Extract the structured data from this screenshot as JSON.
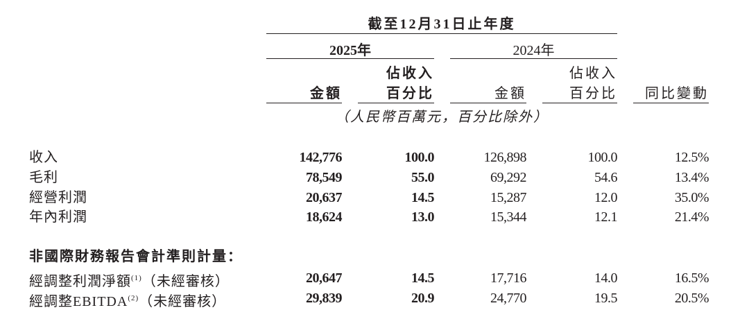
{
  "header": {
    "period": "截至12月31日止年度",
    "year_current": "2025年",
    "year_prior": "2024年",
    "col_amount": "金額",
    "col_pct_line1": "佔收入",
    "col_pct_line2": "百分比",
    "col_change": "同比變動",
    "unit_note": "（人民幣百萬元，百分比除外）"
  },
  "rows": [
    {
      "label": "收入",
      "amount_2025": "142,776",
      "pct_2025": "100.0",
      "amount_2024": "126,898",
      "pct_2024": "100.0",
      "yoy": "12.5%"
    },
    {
      "label": "毛利",
      "amount_2025": "78,549",
      "pct_2025": "55.0",
      "amount_2024": "69,292",
      "pct_2024": "54.6",
      "yoy": "13.4%"
    },
    {
      "label": "經營利潤",
      "amount_2025": "20,637",
      "pct_2025": "14.5",
      "amount_2024": "15,287",
      "pct_2024": "12.0",
      "yoy": "35.0%"
    },
    {
      "label": "年內利潤",
      "amount_2025": "18,624",
      "pct_2025": "13.0",
      "amount_2024": "15,344",
      "pct_2024": "12.1",
      "yoy": "21.4%"
    }
  ],
  "non_ifrs": {
    "heading": "非國際財務報告會計準則計量：",
    "rows": [
      {
        "label": "經調整利潤淨額",
        "footnote": "(1)",
        "suffix": "（未經審核）",
        "amount_2025": "20,647",
        "pct_2025": "14.5",
        "amount_2024": "17,716",
        "pct_2024": "14.0",
        "yoy": "16.5%"
      },
      {
        "label": "經調整EBITDA",
        "footnote": "(2)",
        "suffix": "（未經審核）",
        "amount_2025": "29,839",
        "pct_2025": "20.9",
        "amount_2024": "24,770",
        "pct_2024": "19.5",
        "yoy": "20.5%"
      }
    ]
  }
}
